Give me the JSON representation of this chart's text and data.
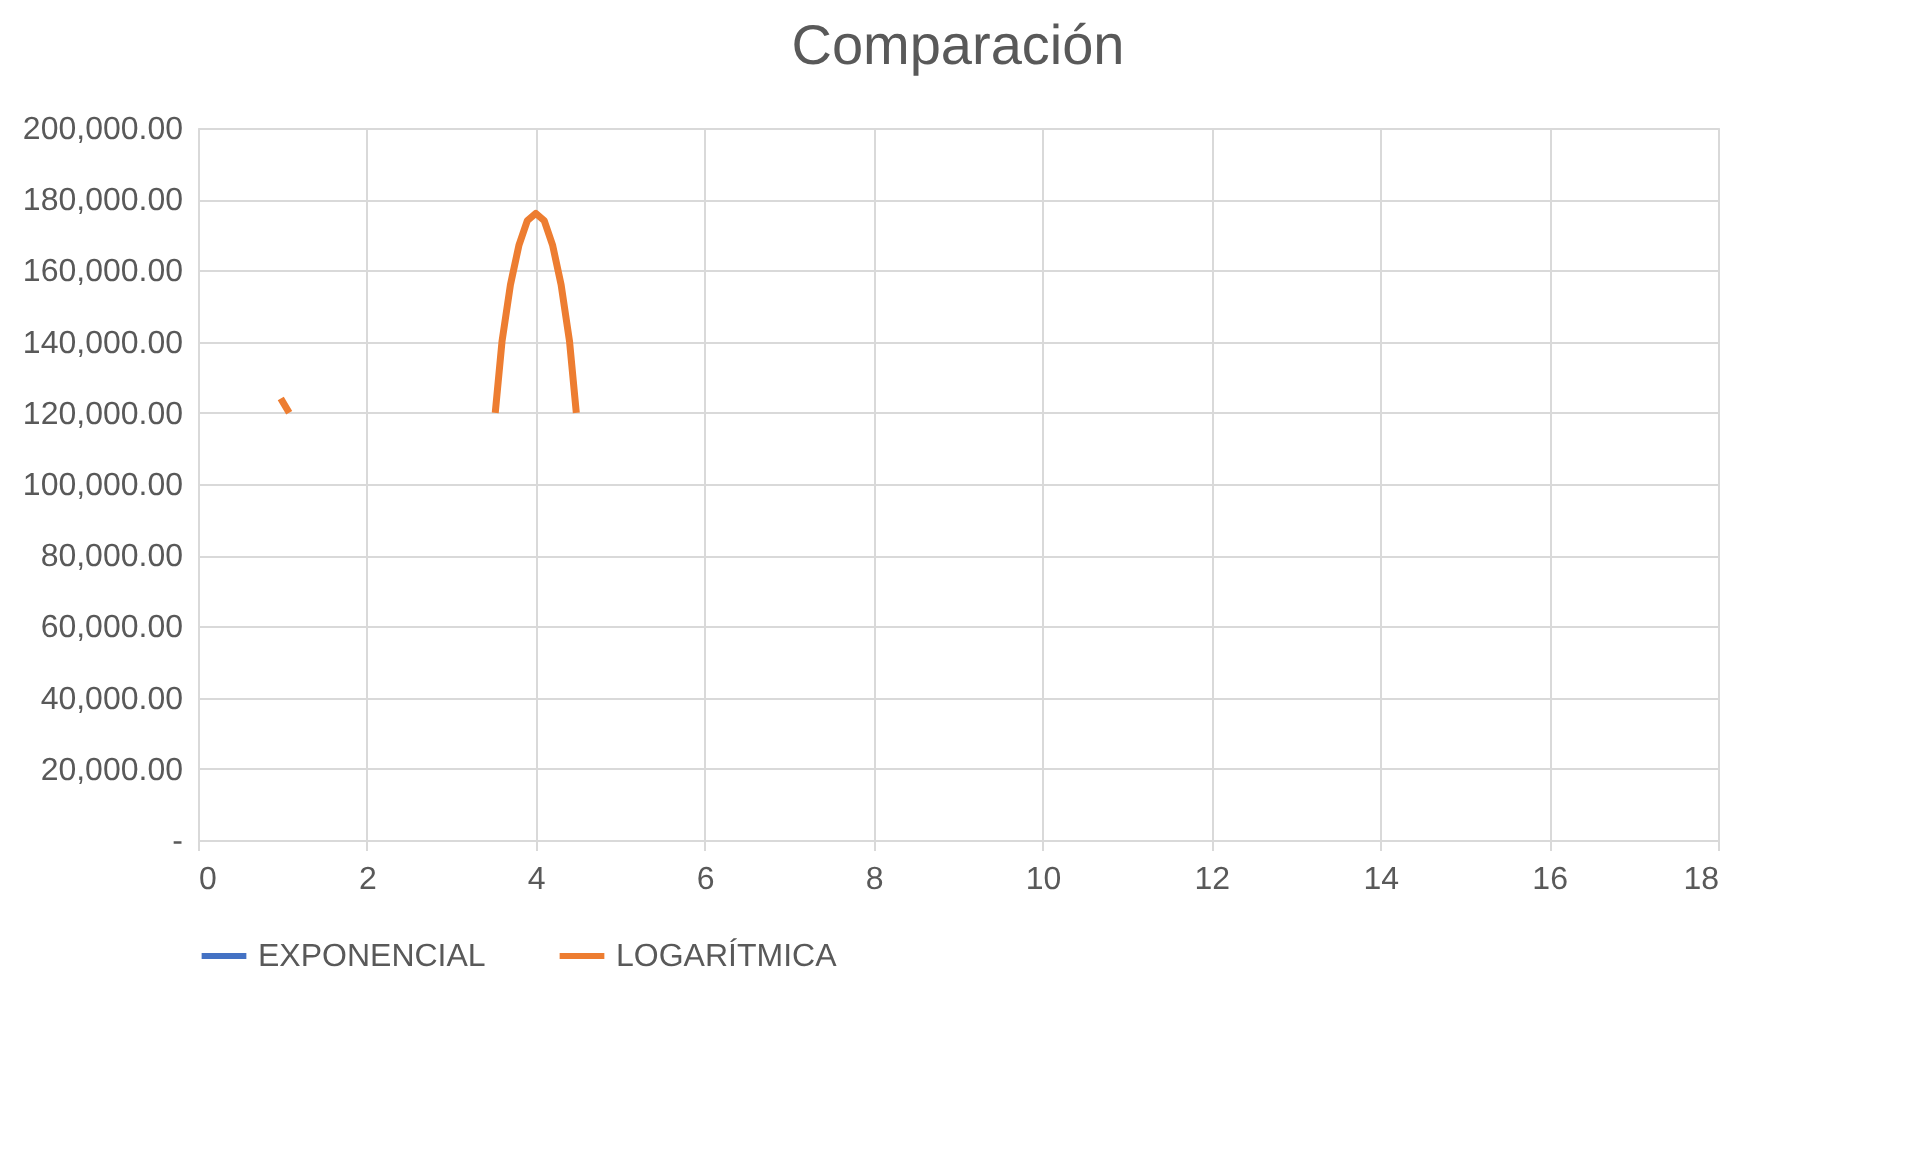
{
  "chart_data": {
    "type": "line",
    "title": "Comparación",
    "series": [
      {
        "name": "EXPONENCIAL",
        "color": "#4472c4"
      },
      {
        "name": "LOGARÍTMICA",
        "color": "#ed7d31",
        "x": [
          0.98,
          1.08,
          2.0,
          3.52,
          3.6,
          3.7,
          3.8,
          3.9,
          4.0,
          4.1,
          4.2,
          4.3,
          4.4,
          4.48
        ],
        "values": [
          124000,
          120000,
          null,
          120000,
          140000,
          156000,
          167000,
          174000,
          176000,
          174000,
          167000,
          156000,
          140000,
          120000
        ]
      }
    ],
    "xlim": [
      0,
      18
    ],
    "xticks": [
      0,
      2,
      4,
      6,
      8,
      10,
      12,
      14,
      16,
      18
    ],
    "ylim": [
      0,
      200000
    ],
    "yticks": [
      {
        "value": 0,
        "label": "-"
      },
      {
        "value": 20000,
        "label": "20,000.00"
      },
      {
        "value": 40000,
        "label": "40,000.00"
      },
      {
        "value": 60000,
        "label": "60,000.00"
      },
      {
        "value": 80000,
        "label": "80,000.00"
      },
      {
        "value": 100000,
        "label": "100,000.00"
      },
      {
        "value": 120000,
        "label": "120,000.00"
      },
      {
        "value": 140000,
        "label": "140,000.00"
      },
      {
        "value": 160000,
        "label": "160,000.00"
      },
      {
        "value": 180000,
        "label": "180,000.00"
      },
      {
        "value": 200000,
        "label": "200,000.00"
      }
    ],
    "grid": true,
    "legend": "bottom",
    "marker": "none",
    "line_style": "solid"
  }
}
